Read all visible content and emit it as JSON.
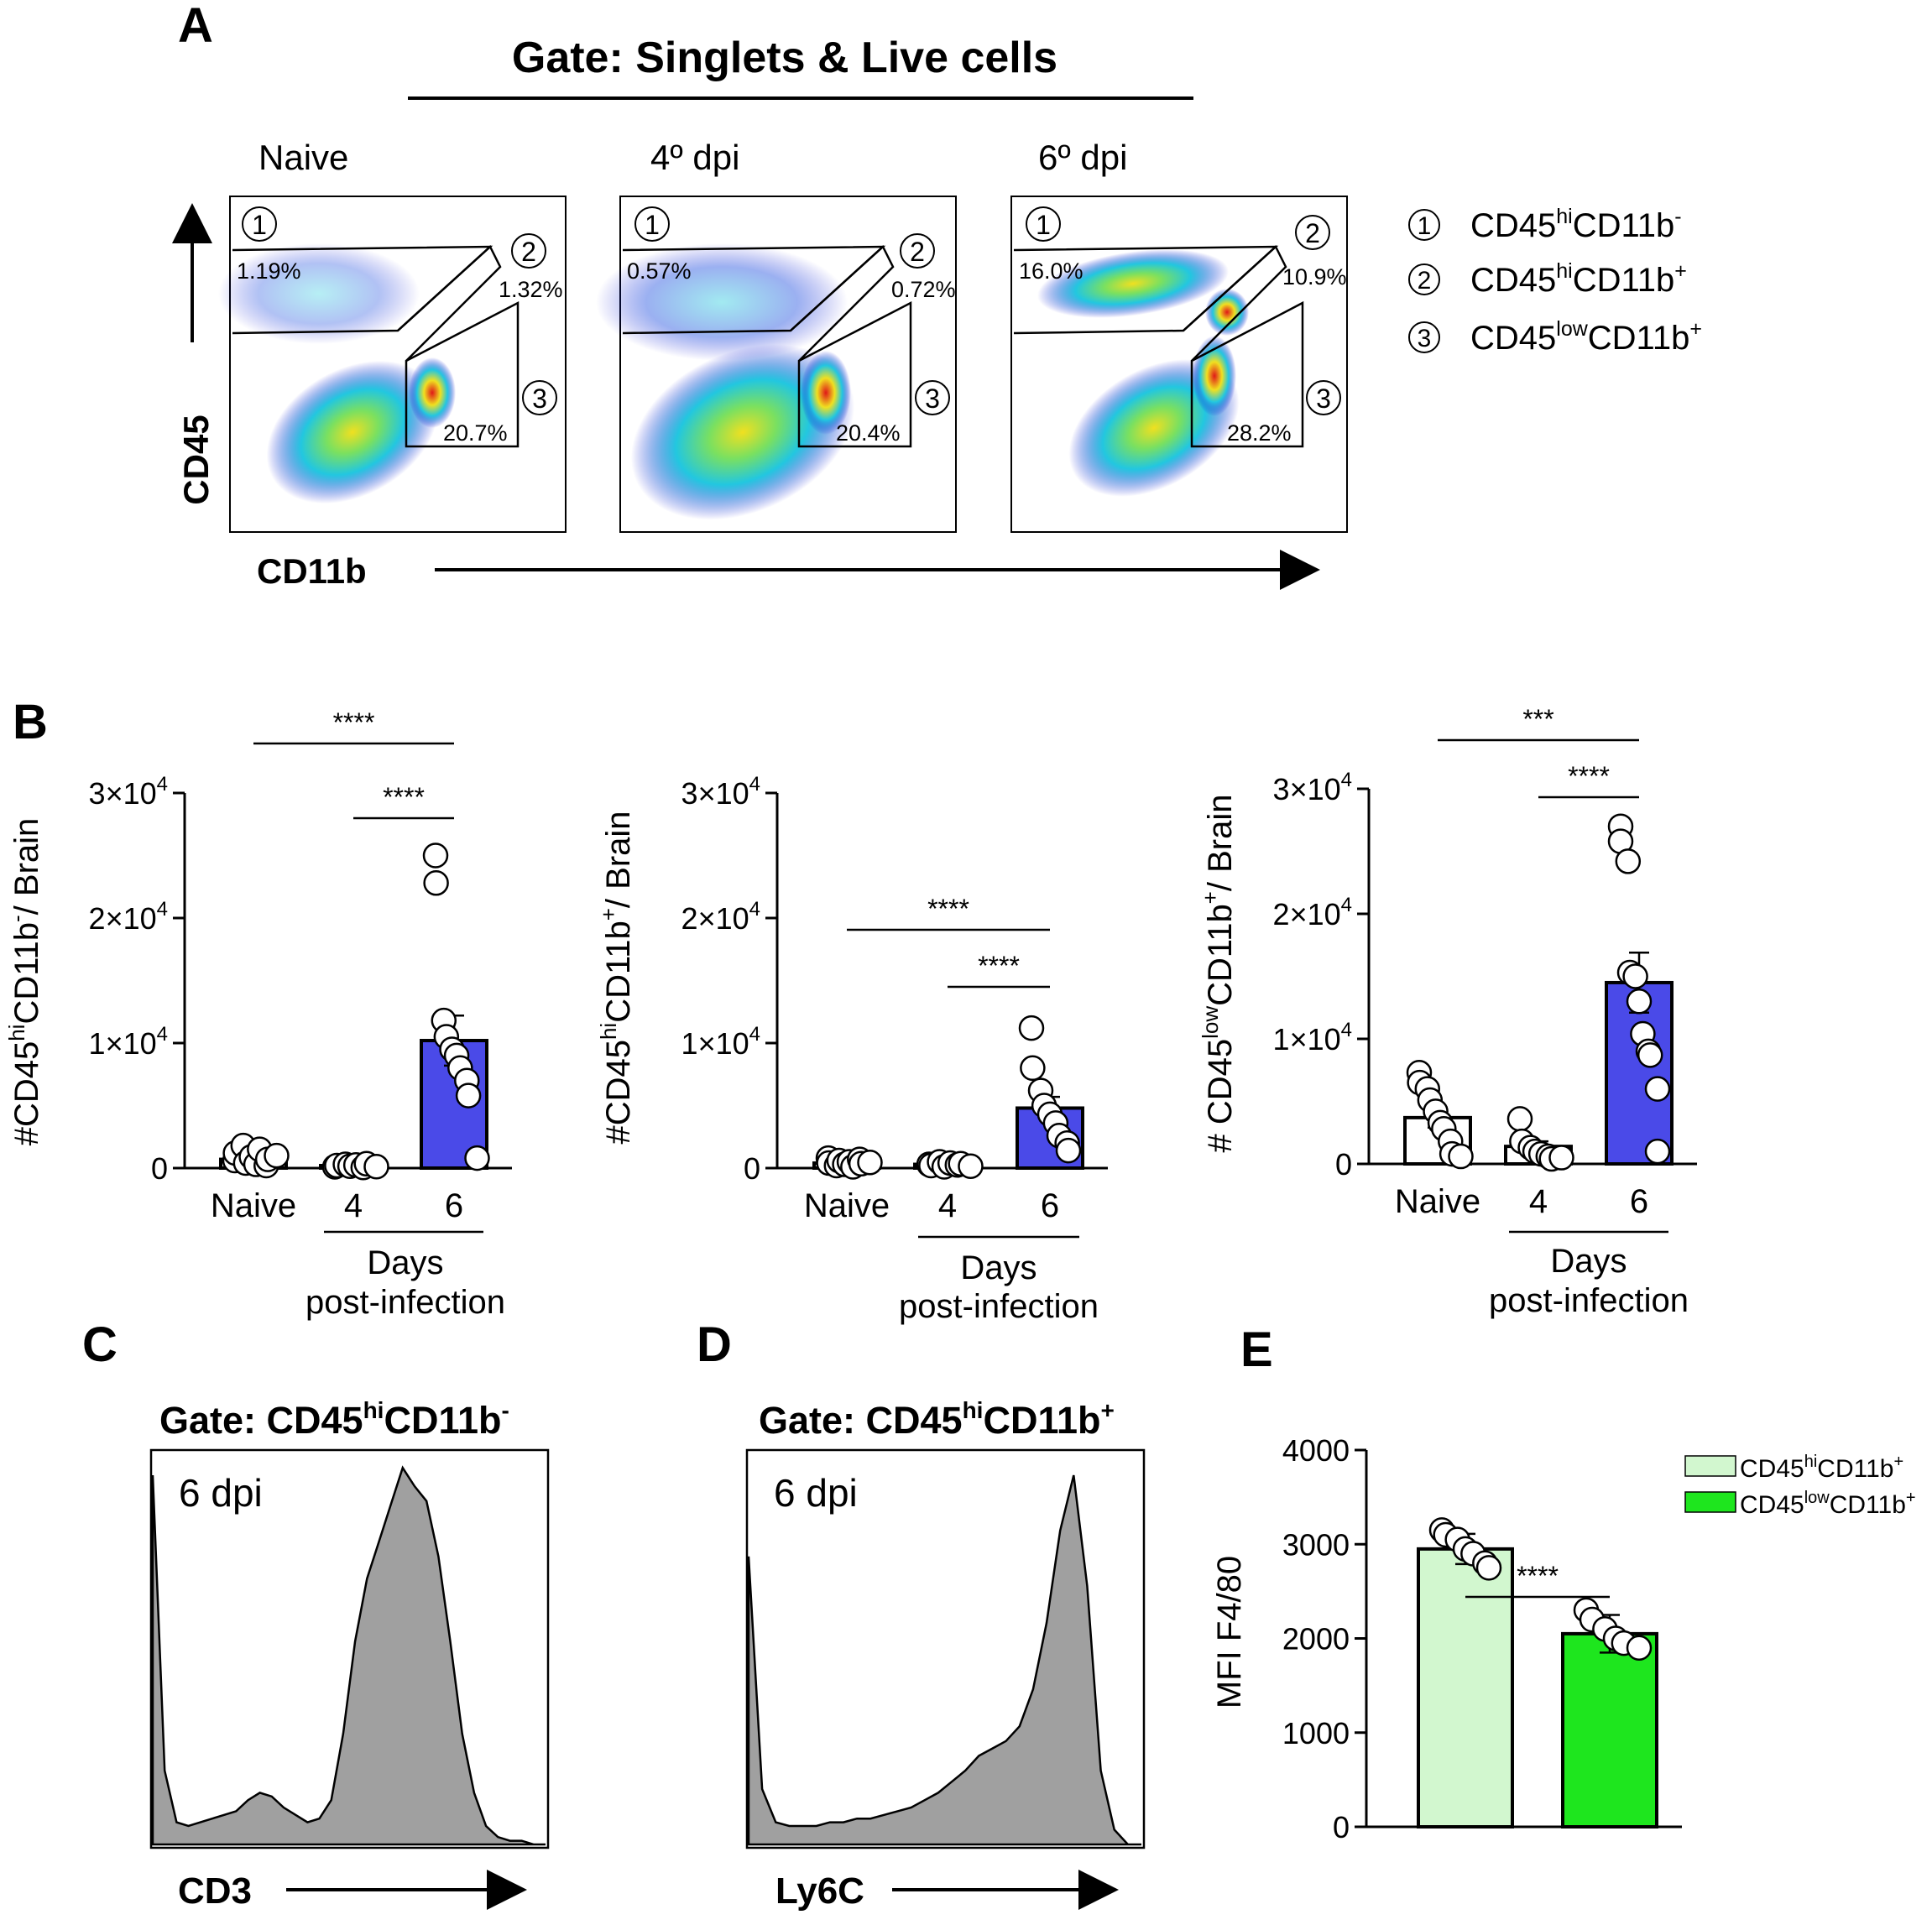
{
  "panel_letters": {
    "A": "A",
    "B": "B",
    "C": "C",
    "D": "D",
    "E": "E"
  },
  "panelA": {
    "gate_title": "Gate: Singlets & Live cells",
    "y_axis": "CD45",
    "x_axis": "CD11b",
    "plots": [
      {
        "label": "Naive",
        "pct1": "1.19%",
        "pct2": "1.32%",
        "pct3": "20.7%"
      },
      {
        "label": "4º dpi",
        "pct1": "0.57%",
        "pct2": "0.72%",
        "pct3": "20.4%"
      },
      {
        "label": "6º dpi",
        "pct1": "16.0%",
        "pct2": "10.9%",
        "pct3": "28.2%"
      }
    ],
    "gate_numbers": [
      "1",
      "2",
      "3"
    ],
    "legend": [
      {
        "num": "1",
        "base": "CD45",
        "sup1": "hi",
        "mid": "CD11b",
        "sup2": "-"
      },
      {
        "num": "2",
        "base": "CD45",
        "sup1": "hi",
        "mid": "CD11b",
        "sup2": "+"
      },
      {
        "num": "3",
        "base": "CD45",
        "sup1": "low",
        "mid": "CD11b",
        "sup2": "+"
      }
    ],
    "colors": {
      "low": "#1010d0",
      "mid": "#22c7e0",
      "high": "#e01818",
      "warm": "#f0e020"
    }
  },
  "panelB": {
    "ytick_base": "×10",
    "ytick_exp": "4",
    "x_title": [
      "Days",
      "post-infection"
    ],
    "bar_color": "#4a4ae8"
  },
  "panelC": {
    "gate_prefix": "Gate: CD45",
    "gate_sup1": "hi",
    "gate_mid": "CD11b",
    "gate_sup2": "-",
    "label": "6 dpi",
    "x_axis": "CD3"
  },
  "panelD": {
    "gate_prefix": "Gate: CD45",
    "gate_sup1": "hi",
    "gate_mid": "CD11b",
    "gate_sup2": "+",
    "label": "6 dpi",
    "x_axis": "Ly6C"
  },
  "panelE_legend": [
    {
      "base": "CD45",
      "sup1": "hi",
      "mid": "CD11b",
      "sup2": "+",
      "color": "#d2f7cf"
    },
    {
      "base": "CD45",
      "sup1": "low",
      "mid": "CD11b",
      "sup2": "+",
      "color": "#1ee61e"
    }
  ],
  "chart_data": [
    {
      "id": "B1",
      "type": "bar",
      "ylabel": "#CD45hiCD11b-/ Brain",
      "ylabel_parts": {
        "pre": "#CD45",
        "sup1": "hi",
        "mid": "CD11b",
        "sup2": "-",
        "post": "/ Brain"
      },
      "categories": [
        "Naive",
        "4",
        "6"
      ],
      "values": [
        700,
        200,
        10200
      ],
      "sem": [
        300,
        100,
        2000
      ],
      "bar_fills": [
        "#ffffff",
        "#ffffff",
        "#4a4ae8"
      ],
      "points": [
        [
          600,
          1200,
          1800,
          400,
          900,
          300,
          1500,
          200,
          700,
          1000
        ],
        [
          100,
          200,
          300,
          150,
          250,
          50,
          350,
          120
        ],
        [
          25000,
          22800,
          11800,
          10500,
          9500,
          9000,
          8000,
          7000,
          5800,
          800
        ]
      ],
      "ylim": [
        0,
        30000
      ],
      "yticks": [
        0,
        10000,
        20000,
        30000
      ],
      "ytick_labels": [
        "0",
        "1",
        "2",
        "3"
      ],
      "significance": [
        {
          "from": 0,
          "to": 2,
          "label": "****"
        },
        {
          "from": 1,
          "to": 2,
          "label": "****"
        }
      ]
    },
    {
      "id": "B2",
      "type": "bar",
      "ylabel": "#CD45hiCD11b+/ Brain",
      "ylabel_parts": {
        "pre": "#CD45",
        "sup1": "hi",
        "mid": "CD11b",
        "sup2": "+",
        "post": "/ Brain"
      },
      "categories": [
        "Naive",
        "4",
        "6"
      ],
      "values": [
        400,
        300,
        4800
      ],
      "sem": [
        150,
        150,
        900
      ],
      "bar_fills": [
        "#ffffff",
        "#ffffff",
        "#4a4ae8"
      ],
      "points": [
        [
          800,
          400,
          200,
          600,
          300,
          500,
          100,
          700,
          350,
          450
        ],
        [
          300,
          200,
          500,
          100,
          400,
          250,
          350,
          150
        ],
        [
          11200,
          8000,
          6200,
          5000,
          4300,
          3600,
          2600,
          2000,
          1400
        ]
      ],
      "ylim": [
        0,
        30000
      ],
      "yticks": [
        0,
        10000,
        20000,
        30000
      ],
      "ytick_labels": [
        "0",
        "1",
        "2",
        "3"
      ],
      "significance": [
        {
          "from": 0,
          "to": 2,
          "label": "****"
        },
        {
          "from": 1,
          "to": 2,
          "label": "****"
        }
      ]
    },
    {
      "id": "B3",
      "type": "bar",
      "ylabel": "# CD45lowCD11b+/ Brain",
      "ylabel_parts": {
        "pre": "# CD45",
        "sup1": "low",
        "mid": "CD11b",
        "sup2": "+",
        "post": "/ Brain"
      },
      "categories": [
        "Naive",
        "4",
        "6"
      ],
      "values": [
        3700,
        1400,
        14500
      ],
      "sem": [
        800,
        400,
        2400
      ],
      "bar_fills": [
        "#ffffff",
        "#ffffff",
        "#4a4ae8"
      ],
      "points": [
        [
          7300,
          6500,
          6000,
          5100,
          4200,
          3300,
          2800,
          1800,
          800,
          600
        ],
        [
          3600,
          1800,
          1300,
          1000,
          800,
          600,
          400,
          500
        ],
        [
          27000,
          25800,
          24200,
          15300,
          15000,
          13000,
          10400,
          9000,
          8700,
          6000,
          1000
        ]
      ],
      "ylim": [
        0,
        30000
      ],
      "yticks": [
        0,
        10000,
        20000,
        30000
      ],
      "ytick_labels": [
        "0",
        "1",
        "2",
        "3"
      ],
      "significance": [
        {
          "from": 0,
          "to": 2,
          "label": "***"
        },
        {
          "from": 1,
          "to": 2,
          "label": "****"
        }
      ]
    },
    {
      "id": "E",
      "type": "bar",
      "ylabel": "MFI F4/80",
      "categories": [
        "CD45hiCD11b+",
        "CD45lowCD11b+"
      ],
      "values": [
        2950,
        2050
      ],
      "sem": [
        160,
        200
      ],
      "bar_fills": [
        "#d2f7cf",
        "#1ee61e"
      ],
      "points": [
        [
          3150,
          3100,
          3050,
          2950,
          2900,
          2800,
          2750
        ],
        [
          2300,
          2200,
          2100,
          2000,
          1950,
          1900
        ]
      ],
      "ylim": [
        0,
        4000
      ],
      "yticks": [
        0,
        1000,
        2000,
        3000,
        4000
      ],
      "ytick_labels": [
        "0",
        "1000",
        "2000",
        "3000",
        "4000"
      ],
      "significance": [
        {
          "from": 0,
          "to": 1,
          "label": "****"
        }
      ]
    },
    {
      "id": "C",
      "type": "area",
      "title": "Gate: CD45hiCD11b-",
      "xlabel": "CD3",
      "y": [
        1.0,
        0.2,
        0.06,
        0.05,
        0.06,
        0.07,
        0.08,
        0.09,
        0.12,
        0.14,
        0.13,
        0.1,
        0.08,
        0.06,
        0.07,
        0.12,
        0.3,
        0.55,
        0.72,
        0.82,
        0.92,
        1.02,
        0.97,
        0.93,
        0.78,
        0.55,
        0.3,
        0.14,
        0.05,
        0.02,
        0.01,
        0.01,
        0.0,
        0.0
      ]
    },
    {
      "id": "D",
      "type": "area",
      "title": "Gate: CD45hiCD11b+",
      "xlabel": "Ly6C",
      "y": [
        0.78,
        0.15,
        0.06,
        0.05,
        0.05,
        0.05,
        0.06,
        0.06,
        0.07,
        0.07,
        0.08,
        0.09,
        0.1,
        0.12,
        0.14,
        0.17,
        0.2,
        0.24,
        0.26,
        0.28,
        0.32,
        0.42,
        0.6,
        0.85,
        1.0,
        0.7,
        0.2,
        0.04,
        0.0,
        0.0
      ]
    }
  ]
}
